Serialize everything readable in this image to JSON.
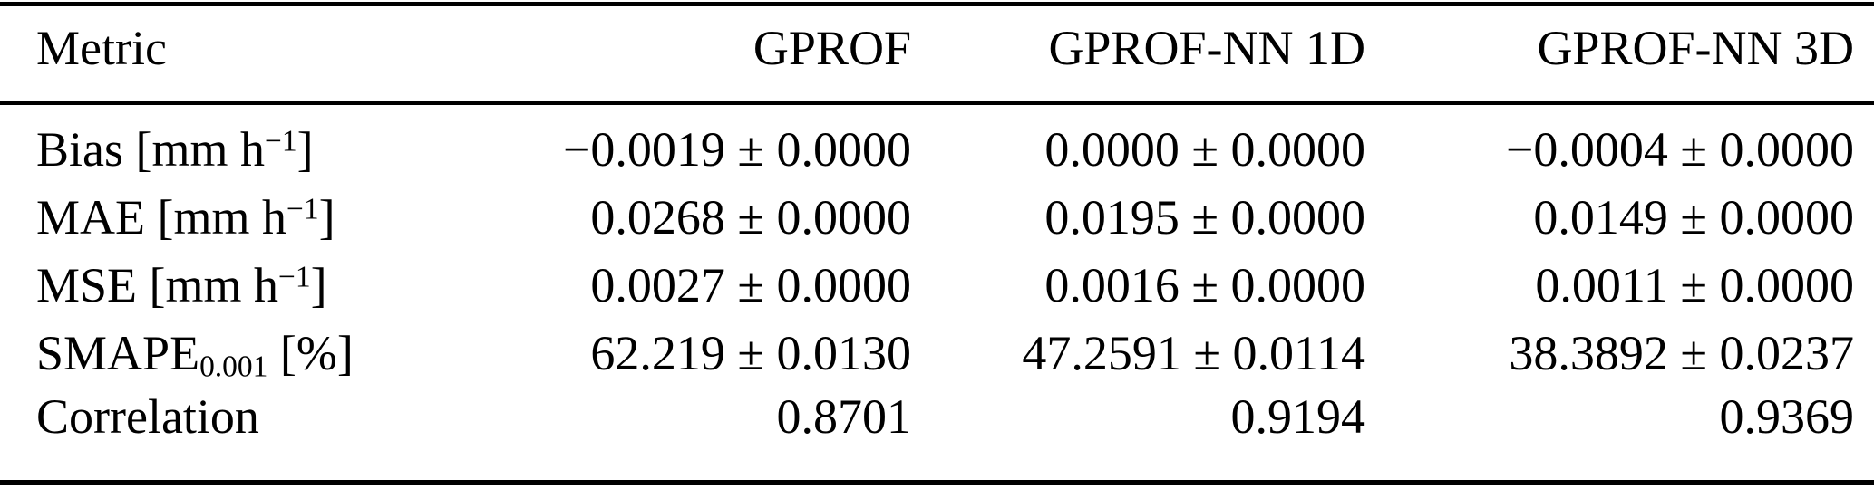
{
  "table": {
    "title": "Retrieval accuracy metrics table",
    "colors": {
      "text": "#000000",
      "background": "#ffffff",
      "rule": "#000000"
    },
    "columns": [
      "Metric",
      "GPROF",
      "GPROF-NN 1D",
      "GPROF-NN 3D"
    ],
    "rows": [
      {
        "metric": {
          "base": "Bias [mm h",
          "sup": "−1",
          "tail": "]"
        },
        "values": [
          "−0.0019 ± 0.0000",
          "0.0000 ± 0.0000",
          "−0.0004 ± 0.0000"
        ]
      },
      {
        "metric": {
          "base": "MAE [mm h",
          "sup": "−1",
          "tail": "]"
        },
        "values": [
          "0.0268 ± 0.0000",
          "0.0195 ± 0.0000",
          "0.0149 ± 0.0000"
        ]
      },
      {
        "metric": {
          "base": "MSE [mm h",
          "sup": "−1",
          "tail": "]"
        },
        "values": [
          "0.0027 ± 0.0000",
          "0.0016 ± 0.0000",
          "0.0011 ± 0.0000"
        ]
      },
      {
        "metric": {
          "base": "SMAPE",
          "sub": "0.001",
          "tail": " [%]"
        },
        "values": [
          "62.219 ± 0.0130",
          "47.2591 ± 0.0114",
          "38.3892 ± 0.0237"
        ]
      },
      {
        "metric": {
          "base": "Correlation"
        },
        "values": [
          "0.8701",
          "0.9194",
          "0.9369"
        ]
      }
    ]
  }
}
